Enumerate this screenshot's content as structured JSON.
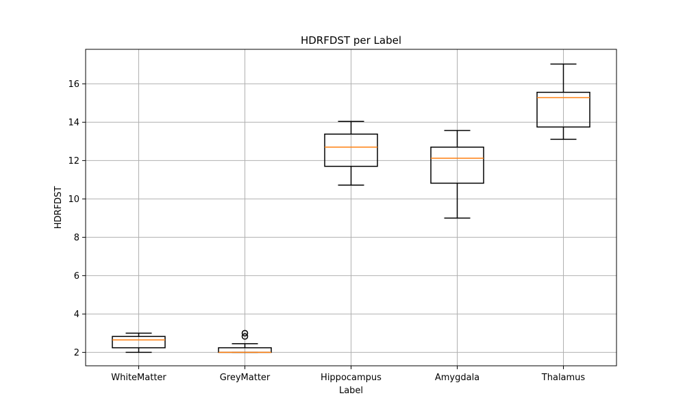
{
  "chart_data": {
    "type": "box",
    "title": "HDRFDST per Label",
    "xlabel": "Label",
    "ylabel": "HDRFDST",
    "ylim": [
      1.3,
      17.8
    ],
    "yticks": [
      2,
      4,
      6,
      8,
      10,
      12,
      14,
      16
    ],
    "grid": true,
    "categories": [
      "WhiteMatter",
      "GreyMatter",
      "Hippocampus",
      "Amygdala",
      "Thalamus"
    ],
    "boxes": [
      {
        "label": "WhiteMatter",
        "whisker_low": 2.0,
        "q1": 2.24,
        "median": 2.65,
        "q3": 2.83,
        "whisker_high": 3.0,
        "fliers": []
      },
      {
        "label": "GreyMatter",
        "whisker_low": 2.0,
        "q1": 2.0,
        "median": 2.0,
        "q3": 2.24,
        "whisker_high": 2.45,
        "fliers": [
          2.83,
          3.0
        ]
      },
      {
        "label": "Hippocampus",
        "whisker_low": 10.72,
        "q1": 11.7,
        "median": 12.7,
        "q3": 13.38,
        "whisker_high": 14.04,
        "fliers": []
      },
      {
        "label": "Amygdala",
        "whisker_low": 9.0,
        "q1": 10.82,
        "median": 12.12,
        "q3": 12.7,
        "whisker_high": 13.57,
        "fliers": []
      },
      {
        "label": "Thalamus",
        "whisker_low": 13.11,
        "q1": 13.75,
        "median": 15.28,
        "q3": 15.56,
        "whisker_high": 17.03,
        "fliers": []
      }
    ],
    "colors": {
      "box": "#000000",
      "median": "#ff7f0e",
      "grid": "#b0b0b0",
      "axes": "#000000"
    }
  }
}
